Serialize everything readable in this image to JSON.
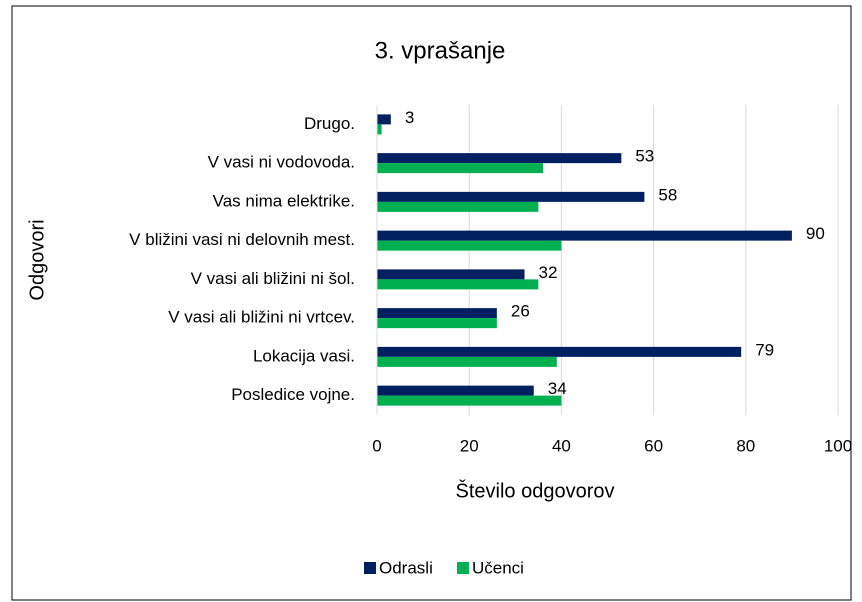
{
  "chart_data": {
    "type": "bar",
    "orientation": "horizontal",
    "title": "3. vprašanje",
    "x_label": "Število odgovorov",
    "y_label": "Odgovori",
    "categories": [
      "Drugo.",
      "V vasi ni vodovoda.",
      "Vas nima elektrike.",
      "V bližini vasi ni delovnih mest.",
      "V vasi ali bližini ni šol.",
      "V vasi ali bližini ni vrtcev.",
      "Lokacija vasi.",
      "Posledice vojne."
    ],
    "series": [
      {
        "name": "Odrasli",
        "color": "#002060",
        "values": [
          3,
          53,
          58,
          90,
          32,
          26,
          79,
          34
        ],
        "data_labels": true
      },
      {
        "name": "Učenci",
        "color": "#00b050",
        "values": [
          1,
          36,
          35,
          40,
          35,
          26,
          39,
          40
        ],
        "data_labels": false
      }
    ],
    "xlim": [
      0,
      100
    ],
    "xticks": [
      0,
      20,
      40,
      60,
      80,
      100
    ],
    "grid": true,
    "legend": "bottom"
  }
}
